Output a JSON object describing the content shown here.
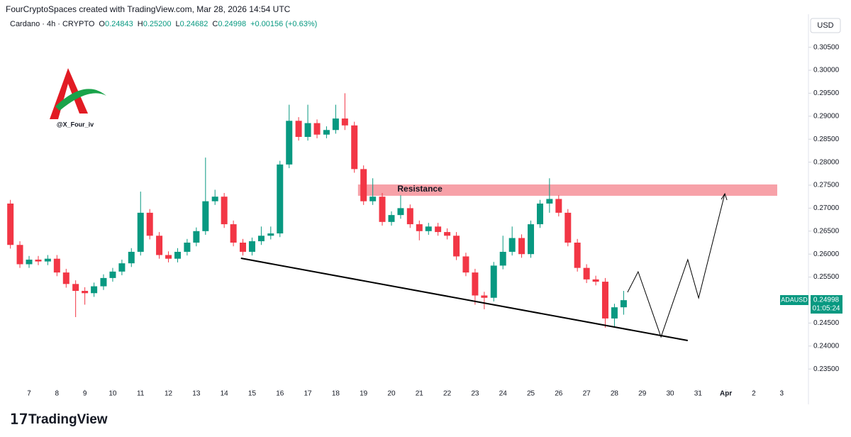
{
  "header": "FourCryptoSpaces created with TradingView.com, Mar 28, 2026 14:54 UTC",
  "legend": {
    "symbol": "Cardano · 4h · CRYPTO",
    "fields": [
      {
        "key": "O",
        "value": "0.24843"
      },
      {
        "key": "H",
        "value": "0.25200"
      },
      {
        "key": "L",
        "value": "0.24682"
      },
      {
        "key": "C",
        "value": "0.24998"
      }
    ],
    "change": "+0.00156 (+0.63%)"
  },
  "watermark": "@X_Four_iv",
  "footer": "TradingView",
  "currency": "USD",
  "price_tag": {
    "symbol": "ADAUSD",
    "price": "0.24998",
    "countdown": "01:05:24"
  },
  "chart_data": {
    "type": "candlestick",
    "up_color": "#089981",
    "down_color": "#f23645",
    "x": [
      6.33,
      6.67,
      7,
      7.33,
      7.67,
      8,
      8.33,
      8.67,
      9,
      9.33,
      9.67,
      10,
      10.33,
      10.67,
      11,
      11.33,
      11.67,
      12,
      12.33,
      12.67,
      13,
      13.33,
      13.67,
      14,
      14.33,
      14.67,
      15,
      15.33,
      15.67,
      16,
      16.33,
      16.67,
      17,
      17.33,
      17.67,
      18,
      18.33,
      18.67,
      19,
      19.33,
      19.67,
      20,
      20.33,
      20.67,
      21,
      21.33,
      21.67,
      22,
      22.33,
      22.67,
      23,
      23.33,
      23.67,
      24,
      24.33,
      24.67,
      25,
      25.33,
      25.67,
      26,
      26.33,
      26.67,
      27,
      27.33,
      27.67,
      28,
      28.33
    ],
    "ohlc": [
      [
        0.271,
        0.2718,
        0.2612,
        0.262
      ],
      [
        0.262,
        0.2628,
        0.257,
        0.2578
      ],
      [
        0.2578,
        0.2596,
        0.257,
        0.2588
      ],
      [
        0.2588,
        0.2596,
        0.2576,
        0.2584
      ],
      [
        0.2584,
        0.2598,
        0.2576,
        0.259
      ],
      [
        0.259,
        0.2598,
        0.2552,
        0.256
      ],
      [
        0.256,
        0.2568,
        0.2527,
        0.2535
      ],
      [
        0.2535,
        0.2543,
        0.2463,
        0.252
      ],
      [
        0.252,
        0.2528,
        0.249,
        0.2515
      ],
      [
        0.2515,
        0.2538,
        0.2507,
        0.253
      ],
      [
        0.253,
        0.2556,
        0.2522,
        0.2548
      ],
      [
        0.2548,
        0.257,
        0.254,
        0.2562
      ],
      [
        0.2562,
        0.2588,
        0.2554,
        0.258
      ],
      [
        0.258,
        0.2613,
        0.2572,
        0.2605
      ],
      [
        0.2605,
        0.2736,
        0.2597,
        0.269
      ],
      [
        0.269,
        0.2698,
        0.2632,
        0.264
      ],
      [
        0.264,
        0.2648,
        0.259,
        0.2598
      ],
      [
        0.2598,
        0.2606,
        0.2582,
        0.259
      ],
      [
        0.259,
        0.2613,
        0.2582,
        0.2605
      ],
      [
        0.2605,
        0.2633,
        0.2597,
        0.2625
      ],
      [
        0.2625,
        0.2658,
        0.2617,
        0.265
      ],
      [
        0.265,
        0.281,
        0.2642,
        0.2715
      ],
      [
        0.2715,
        0.274,
        0.2707,
        0.2725
      ],
      [
        0.2725,
        0.2733,
        0.2657,
        0.2665
      ],
      [
        0.2665,
        0.2673,
        0.2617,
        0.2625
      ],
      [
        0.2625,
        0.2633,
        0.2597,
        0.2605
      ],
      [
        0.2605,
        0.2636,
        0.2597,
        0.2628
      ],
      [
        0.2628,
        0.266,
        0.262,
        0.264
      ],
      [
        0.264,
        0.266,
        0.2632,
        0.2645
      ],
      [
        0.2645,
        0.2803,
        0.2637,
        0.2795
      ],
      [
        0.2795,
        0.2925,
        0.2787,
        0.289
      ],
      [
        0.289,
        0.2898,
        0.2847,
        0.2855
      ],
      [
        0.2855,
        0.2925,
        0.2847,
        0.2885
      ],
      [
        0.2885,
        0.2893,
        0.2852,
        0.286
      ],
      [
        0.286,
        0.2878,
        0.2852,
        0.287
      ],
      [
        0.287,
        0.2925,
        0.2862,
        0.2895
      ],
      [
        0.2895,
        0.295,
        0.287,
        0.288
      ],
      [
        0.288,
        0.2888,
        0.2777,
        0.2785
      ],
      [
        0.2785,
        0.2793,
        0.2707,
        0.2715
      ],
      [
        0.2715,
        0.2765,
        0.2707,
        0.2725
      ],
      [
        0.2725,
        0.2733,
        0.2662,
        0.267
      ],
      [
        0.267,
        0.2693,
        0.2662,
        0.2685
      ],
      [
        0.2685,
        0.2728,
        0.2677,
        0.27
      ],
      [
        0.27,
        0.2708,
        0.2657,
        0.2665
      ],
      [
        0.2665,
        0.2673,
        0.263,
        0.265
      ],
      [
        0.265,
        0.2668,
        0.2642,
        0.266
      ],
      [
        0.266,
        0.2668,
        0.264,
        0.2648
      ],
      [
        0.2648,
        0.2656,
        0.2632,
        0.264
      ],
      [
        0.264,
        0.2648,
        0.2587,
        0.2595
      ],
      [
        0.2595,
        0.2603,
        0.2552,
        0.256
      ],
      [
        0.256,
        0.2568,
        0.249,
        0.251
      ],
      [
        0.251,
        0.2518,
        0.248,
        0.2505
      ],
      [
        0.2505,
        0.2583,
        0.2497,
        0.2575
      ],
      [
        0.2575,
        0.264,
        0.2567,
        0.2605
      ],
      [
        0.2605,
        0.266,
        0.2597,
        0.2635
      ],
      [
        0.2635,
        0.2643,
        0.2592,
        0.26
      ],
      [
        0.26,
        0.2673,
        0.2592,
        0.2665
      ],
      [
        0.2665,
        0.2718,
        0.2657,
        0.271
      ],
      [
        0.271,
        0.2765,
        0.269,
        0.272
      ],
      [
        0.272,
        0.2728,
        0.2682,
        0.269
      ],
      [
        0.269,
        0.2698,
        0.2617,
        0.2625
      ],
      [
        0.2625,
        0.2633,
        0.2562,
        0.257
      ],
      [
        0.257,
        0.2578,
        0.2537,
        0.2545
      ],
      [
        0.2545,
        0.2553,
        0.2532,
        0.254
      ],
      [
        0.254,
        0.2548,
        0.244,
        0.246
      ],
      [
        0.246,
        0.2492,
        0.244,
        0.24843
      ],
      [
        0.24843,
        0.252,
        0.24682,
        0.24998
      ]
    ],
    "xlim": [
      6.16,
      34.96
    ],
    "xticks": [
      7,
      8,
      9,
      10,
      11,
      12,
      13,
      14,
      15,
      16,
      17,
      18,
      19,
      20,
      21,
      22,
      23,
      24,
      25,
      26,
      27,
      28,
      29,
      30,
      31,
      {
        "value": 32,
        "label": "Apr"
      },
      {
        "value": 33,
        "label": "2"
      },
      {
        "value": 34,
        "label": "3"
      }
    ],
    "ylim": [
      0.23117,
      0.30911
    ],
    "yticks": [
      {
        "value": 0.235,
        "label": "0.23500"
      },
      {
        "value": 0.24,
        "label": "0.24000"
      },
      {
        "value": 0.245,
        "label": "0.24500"
      },
      {
        "value": 0.25,
        "label": "0.25000"
      },
      {
        "value": 0.255,
        "label": "0.25500"
      },
      {
        "value": 0.26,
        "label": "0.26000"
      },
      {
        "value": 0.265,
        "label": "0.26500"
      },
      {
        "value": 0.27,
        "label": "0.27000"
      },
      {
        "value": 0.275,
        "label": "0.27500"
      },
      {
        "value": 0.28,
        "label": "0.28000"
      },
      {
        "value": 0.285,
        "label": "0.28500"
      },
      {
        "value": 0.29,
        "label": "0.29000"
      },
      {
        "value": 0.295,
        "label": "0.29500"
      },
      {
        "value": 0.3,
        "label": "0.30000"
      },
      {
        "value": 0.305,
        "label": "0.30500"
      }
    ],
    "resistance": {
      "label": "Resistance",
      "x": [
        18.8,
        33.84
      ],
      "y": [
        0.27269,
        0.27515
      ],
      "color": "#f7a1a8"
    },
    "trendline": {
      "x": [
        14.6,
        30.63
      ],
      "y": [
        0.2591,
        0.2412
      ]
    },
    "projection": {
      "x": [
        28.47,
        28.85,
        29.67,
        30.63,
        31.02,
        31.96
      ],
      "y": [
        0.2517,
        0.25617,
        0.24198,
        0.2588,
        0.25046,
        0.27315
      ]
    }
  }
}
